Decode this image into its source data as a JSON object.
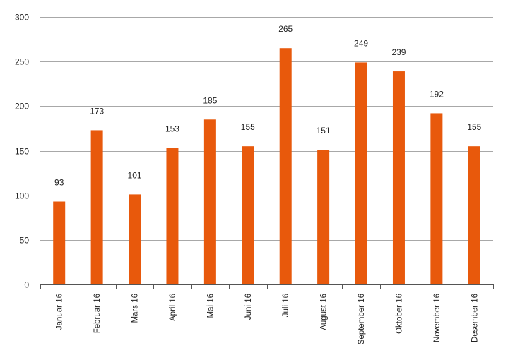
{
  "chart_data": {
    "type": "bar",
    "title": "",
    "xlabel": "",
    "ylabel": "",
    "categories": [
      "Januar 16",
      "Februar 16",
      "Mars 16",
      "April 16",
      "Mai 16",
      "Juni 16",
      "Juli 16",
      "August 16",
      "September 16",
      "Oktober 16",
      "November 16",
      "Desember 16"
    ],
    "values": [
      93,
      173,
      101,
      153,
      185,
      155,
      265,
      151,
      249,
      239,
      192,
      155
    ],
    "ylim": [
      0,
      300
    ],
    "yticks": [
      0,
      50,
      100,
      150,
      200,
      250,
      300
    ],
    "grid": true,
    "legend": "none",
    "bar_color": "#e8590c"
  }
}
